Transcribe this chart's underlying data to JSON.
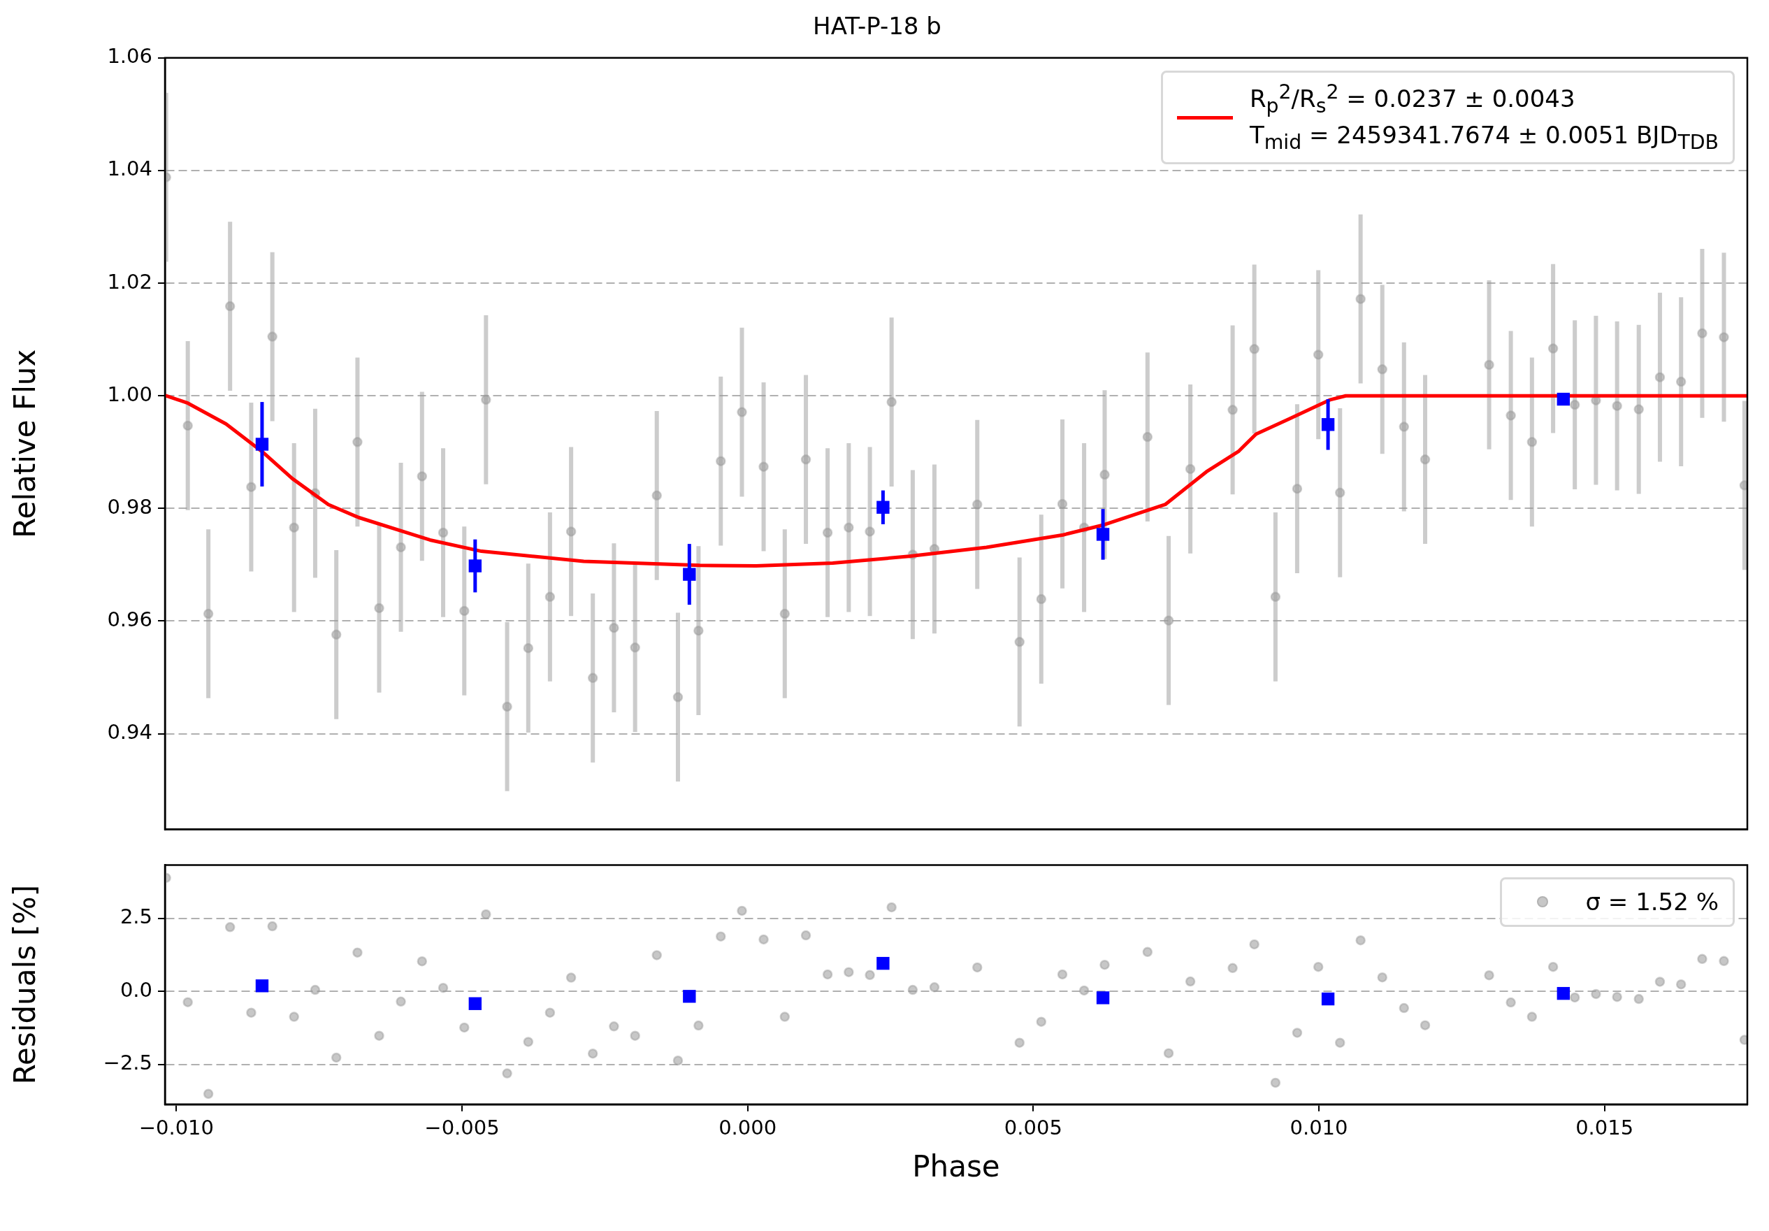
{
  "chart_data": [
    {
      "type": "scatter",
      "title": "HAT-P-18 b",
      "ylabel": "Relative Flux",
      "xlim": [
        -0.0102,
        0.0175
      ],
      "ylim": [
        0.923,
        1.06
      ],
      "yticks": [
        0.94,
        0.96,
        0.98,
        {
          "value": 1,
          "label": "1.00"
        },
        1.02,
        1.04,
        1.06
      ],
      "grid": "y",
      "legend": "top right",
      "tick_labels": "y",
      "series": [
        {
          "type": "scatter",
          "color": "#999999",
          "marker": "circle",
          "x": [
            -0.01018,
            -0.0098,
            -0.00944,
            -0.00906,
            -0.00869,
            -0.00832,
            -0.00794,
            -0.00757,
            -0.0072,
            -0.00683,
            -0.00645,
            -0.00607,
            -0.0057,
            -0.00533,
            -0.00496,
            -0.00458,
            -0.00421,
            -0.00384,
            -0.00346,
            -0.00309,
            -0.00271,
            -0.00234,
            -0.00197,
            -0.00159,
            -0.00122,
            -0.00086,
            -0.00047,
            -0.0001,
            0.00028,
            0.00065,
            0.00102,
            0.0014,
            0.00177,
            0.00214,
            0.00252,
            0.00289,
            0.00327,
            0.00402,
            0.00476,
            0.00514,
            0.00551,
            0.00589,
            0.00625,
            0.007,
            0.00737,
            0.00775,
            0.00849,
            0.00887,
            0.00924,
            0.00962,
            0.00999,
            0.01037,
            0.01073,
            0.01111,
            0.01149,
            0.01186,
            0.01298,
            0.01336,
            0.01373,
            0.0141,
            0.01448,
            0.01485,
            0.01522,
            0.0156,
            0.01597,
            0.01634,
            0.01671,
            0.01709,
            0.01745
          ],
          "values": [
            1.0388,
            0.9947,
            0.9613,
            1.0159,
            0.9838,
            1.0105,
            0.9766,
            0.9827,
            0.9576,
            0.9918,
            0.9623,
            0.9731,
            0.9857,
            0.9757,
            0.9618,
            0.9993,
            0.9448,
            0.9552,
            0.9643,
            0.9759,
            0.9499,
            0.9588,
            0.9553,
            0.9823,
            0.9465,
            0.9583,
            0.9884,
            0.9971,
            0.9874,
            0.9613,
            0.9887,
            0.9757,
            0.9766,
            0.9759,
            0.9989,
            0.9718,
            0.9728,
            0.9807,
            0.9563,
            0.9639,
            0.9808,
            0.9766,
            0.986,
            0.9927,
            0.9601,
            0.987,
            0.9975,
            1.0083,
            0.9643,
            0.9835,
            1.0073,
            0.9828,
            1.0172,
            1.0047,
            0.9945,
            0.9887,
            1.0055,
            0.9965,
            0.9918,
            1.0084,
            0.9984,
            0.9992,
            0.9982,
            0.9976,
            1.0033,
            1.0025,
            1.0111,
            1.0104,
            0.9841
          ],
          "errors": [
            0.015,
            0.015,
            0.015,
            0.015,
            0.015,
            0.015,
            0.015,
            0.015,
            0.015,
            0.015,
            0.015,
            0.015,
            0.015,
            0.015,
            0.015,
            0.015,
            0.015,
            0.015,
            0.015,
            0.015,
            0.015,
            0.015,
            0.015,
            0.015,
            0.015,
            0.015,
            0.015,
            0.015,
            0.015,
            0.015,
            0.015,
            0.015,
            0.015,
            0.015,
            0.015,
            0.015,
            0.015,
            0.015,
            0.015,
            0.015,
            0.015,
            0.015,
            0.015,
            0.015,
            0.015,
            0.015,
            0.015,
            0.015,
            0.015,
            0.015,
            0.015,
            0.015,
            0.015,
            0.015,
            0.015,
            0.015,
            0.015,
            0.015,
            0.015,
            0.015,
            0.015,
            0.015,
            0.015,
            0.015,
            0.015,
            0.015,
            0.015,
            0.015,
            0.015
          ]
        },
        {
          "type": "line",
          "name": "R$_{p}$$^{2}$/R$_{s}$$^{2}$ = 0.0237 ± 0.0043\nT$_{mid}$ = 2459341.7674 ± 0.0051 BJD$_{TDB}$",
          "color": "#ff0000",
          "marker": "none",
          "line_style": "solid",
          "x": [
            -0.01018,
            -0.0098,
            -0.00913,
            -0.0085,
            -0.00797,
            -0.00734,
            -0.00681,
            -0.00556,
            -0.00466,
            -0.00287,
            -0.00084,
            0.00015,
            0.00149,
            0.00283,
            0.00418,
            0.00552,
            0.00624,
            0.00731,
            0.00803,
            0.00859,
            0.0089,
            0.00948,
            0.0102,
            0.01047,
            0.0175
          ],
          "values": [
            1.0,
            0.9987,
            0.995,
            0.9901,
            0.9853,
            0.9807,
            0.9784,
            0.9744,
            0.9724,
            0.9706,
            0.9699,
            0.9698,
            0.9703,
            0.9715,
            0.9731,
            0.9753,
            0.9771,
            0.9807,
            0.9865,
            0.9901,
            0.9932,
            0.9959,
            0.9993,
            1.0,
            1.0
          ]
        },
        {
          "type": "scatter",
          "color": "#0000ff",
          "marker": "square",
          "x": [
            -0.0085,
            -0.00477,
            -0.00102,
            0.00237,
            0.00622,
            0.01016,
            0.01428
          ],
          "values": [
            0.9914,
            0.9698,
            0.9683,
            0.9802,
            0.9754,
            0.9949,
            0.9994
          ],
          "errors": [
            0.0075,
            0.0047,
            0.0054,
            0.003,
            0.0045,
            0.0045,
            null
          ]
        }
      ]
    },
    {
      "type": "scatter",
      "xlabel": "Phase",
      "ylabel": "Residuals [%]",
      "xlim": [
        -0.0102,
        0.0175
      ],
      "xticks": [
        {
          "value": -0.01,
          "label": "−0.010"
        },
        {
          "value": -0.005,
          "label": "−0.005"
        },
        {
          "value": 0,
          "label": "0.000"
        },
        {
          "value": 0.005,
          "label": "0.005"
        },
        {
          "value": 0.01,
          "label": "0.010"
        },
        {
          "value": 0.015,
          "label": "0.015"
        }
      ],
      "ylim": [
        -3.87,
        4.33
      ],
      "yticks": [
        {
          "value": -2.5,
          "label": "−2.5"
        },
        {
          "value": 0,
          "label": "0.0"
        },
        2.5
      ],
      "grid": "y",
      "legend": "top right",
      "series": [
        {
          "type": "scatter",
          "name": "σ = 1.52 %",
          "color": "#999999",
          "marker": "circle",
          "x": [
            -0.01018,
            -0.0098,
            -0.00944,
            -0.00906,
            -0.00869,
            -0.00832,
            -0.00794,
            -0.00757,
            -0.0072,
            -0.00683,
            -0.00645,
            -0.00607,
            -0.0057,
            -0.00533,
            -0.00496,
            -0.00458,
            -0.00421,
            -0.00384,
            -0.00346,
            -0.00309,
            -0.00271,
            -0.00234,
            -0.00197,
            -0.00159,
            -0.00122,
            -0.00086,
            -0.00047,
            -0.0001,
            0.00028,
            0.00065,
            0.00102,
            0.0014,
            0.00177,
            0.00214,
            0.00252,
            0.00289,
            0.00327,
            0.00402,
            0.00476,
            0.00514,
            0.00551,
            0.00589,
            0.00625,
            0.007,
            0.00737,
            0.00775,
            0.00849,
            0.00887,
            0.00924,
            0.00962,
            0.00999,
            0.01037,
            0.01073,
            0.01111,
            0.01149,
            0.01186,
            0.01298,
            0.01336,
            0.01373,
            0.0141,
            0.01448,
            0.01485,
            0.01522,
            0.0156,
            0.01597,
            0.01634,
            0.01671,
            0.01709,
            0.01745
          ],
          "values": [
            3.89,
            -0.37,
            -3.51,
            2.2,
            -0.73,
            2.23,
            -0.87,
            0.05,
            -2.27,
            1.33,
            -1.52,
            -0.35,
            1.03,
            0.12,
            -1.24,
            2.64,
            -2.81,
            -1.73,
            -0.73,
            0.47,
            -2.13,
            -1.2,
            -1.52,
            1.24,
            -2.37,
            -1.17,
            1.88,
            2.76,
            1.78,
            -0.87,
            1.92,
            0.58,
            0.66,
            0.56,
            2.88,
            0.05,
            0.14,
            0.82,
            -1.76,
            -1.04,
            0.58,
            0.03,
            0.91,
            1.35,
            -2.12,
            0.34,
            0.8,
            1.61,
            -3.13,
            -1.42,
            0.84,
            -1.76,
            1.75,
            0.48,
            -0.57,
            -1.16,
            0.55,
            -0.38,
            -0.87,
            0.84,
            -0.21,
            -0.09,
            -0.19,
            -0.26,
            0.33,
            0.24,
            1.11,
            1.04,
            -1.66
          ]
        },
        {
          "type": "scatter",
          "color": "#0000ff",
          "marker": "square",
          "x": [
            -0.0085,
            -0.00477,
            -0.00102,
            0.00237,
            0.00622,
            0.01016,
            0.01428
          ],
          "values": [
            0.19,
            -0.42,
            -0.17,
            0.96,
            -0.22,
            -0.26,
            -0.07
          ]
        }
      ]
    }
  ]
}
